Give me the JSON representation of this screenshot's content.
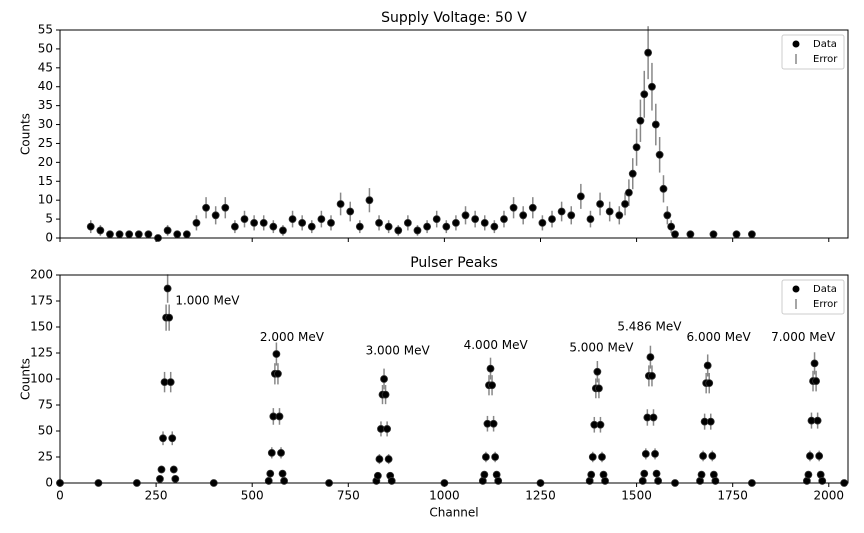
{
  "chart_data": [
    {
      "type": "scatter",
      "title": "Supply Voltage: 50 V",
      "ylabel": "Counts",
      "xlim": [
        0,
        2050
      ],
      "xticks": [
        0,
        250,
        500,
        750,
        1000,
        1250,
        1500,
        1750,
        2000
      ],
      "ylim": [
        0,
        55
      ],
      "yticks": [
        0,
        5,
        10,
        15,
        20,
        25,
        30,
        35,
        40,
        45,
        50,
        55
      ],
      "legend": "upper right",
      "series": [
        {
          "name": "Data",
          "error_name": "Error",
          "color": "#000000",
          "error_color": "#888888",
          "x": [
            80,
            105,
            130,
            155,
            180,
            205,
            230,
            255,
            280,
            305,
            330,
            355,
            380,
            405,
            430,
            455,
            480,
            505,
            530,
            555,
            580,
            605,
            630,
            655,
            680,
            705,
            730,
            755,
            780,
            805,
            830,
            855,
            880,
            905,
            930,
            955,
            980,
            1005,
            1030,
            1055,
            1080,
            1105,
            1130,
            1155,
            1180,
            1205,
            1230,
            1255,
            1280,
            1305,
            1330,
            1355,
            1380,
            1405,
            1430,
            1455,
            1470,
            1480,
            1490,
            1500,
            1510,
            1520,
            1530,
            1540,
            1550,
            1560,
            1570,
            1580,
            1590,
            1600,
            1640,
            1700,
            1760,
            1800
          ],
          "values": [
            3,
            2,
            1,
            1,
            1,
            1,
            1,
            0,
            2,
            1,
            1,
            4,
            8,
            6,
            8,
            3,
            5,
            4,
            4,
            3,
            2,
            5,
            4,
            3,
            5,
            4,
            9,
            7,
            3,
            10,
            4,
            3,
            2,
            4,
            2,
            3,
            5,
            3,
            4,
            6,
            5,
            4,
            3,
            5,
            8,
            6,
            8,
            4,
            5,
            7,
            6,
            11,
            5,
            9,
            7,
            6,
            9,
            12,
            17,
            24,
            31,
            38,
            49,
            40,
            30,
            22,
            13,
            6,
            3,
            1,
            1,
            1,
            1,
            1
          ],
          "errors": [
            1.7,
            1.4,
            1,
            1,
            1,
            1,
            1,
            0,
            1.4,
            1,
            1,
            2,
            2.8,
            2.4,
            2.8,
            1.7,
            2.2,
            2,
            2,
            1.7,
            1.4,
            2.2,
            2,
            1.7,
            2.2,
            2,
            3,
            2.6,
            1.7,
            3.2,
            2,
            1.7,
            1.4,
            2,
            1.4,
            1.7,
            2.2,
            1.7,
            2,
            2.4,
            2.2,
            2,
            1.7,
            2.2,
            2.8,
            2.4,
            2.8,
            2,
            2.2,
            2.6,
            2.4,
            3.3,
            2.2,
            3,
            2.6,
            2.4,
            3,
            3.5,
            4.1,
            4.9,
            5.6,
            6.2,
            7,
            6.3,
            5.5,
            4.7,
            3.6,
            2.4,
            1.7,
            1,
            1,
            1,
            1,
            1
          ]
        }
      ]
    },
    {
      "type": "scatter",
      "title": "Pulser Peaks",
      "xlabel": "Channel",
      "ylabel": "Counts",
      "xlim": [
        0,
        2050
      ],
      "xticks": [
        0,
        250,
        500,
        750,
        1000,
        1250,
        1500,
        1750,
        2000
      ],
      "ylim": [
        0,
        200
      ],
      "yticks": [
        0,
        25,
        50,
        75,
        100,
        125,
        150,
        175,
        200
      ],
      "legend": "upper right",
      "annotations": [
        {
          "text": "1.000 MeV",
          "x": 300,
          "y": 175
        },
        {
          "text": "2.000 MeV",
          "x": 520,
          "y": 140
        },
        {
          "text": "3.000 MeV",
          "x": 795,
          "y": 127
        },
        {
          "text": "4.000 MeV",
          "x": 1050,
          "y": 132
        },
        {
          "text": "5.000 MeV",
          "x": 1325,
          "y": 130
        },
        {
          "text": "5.486 MeV",
          "x": 1450,
          "y": 150
        },
        {
          "text": "6.000 MeV",
          "x": 1630,
          "y": 140
        },
        {
          "text": "7.000 MeV",
          "x": 1850,
          "y": 140
        }
      ],
      "series": [
        {
          "name": "Data",
          "error_name": "Error",
          "color": "#000000",
          "error_color": "#888888",
          "x": [
            260,
            264,
            268,
            272,
            276,
            280,
            284,
            288,
            292,
            296,
            300,
            543,
            547,
            551,
            555,
            559,
            563,
            567,
            571,
            575,
            579,
            583,
            823,
            827,
            831,
            835,
            839,
            843,
            847,
            851,
            855,
            859,
            863,
            1100,
            1104,
            1108,
            1112,
            1116,
            1120,
            1124,
            1128,
            1132,
            1136,
            1140,
            1378,
            1382,
            1386,
            1390,
            1394,
            1398,
            1402,
            1406,
            1410,
            1414,
            1418,
            1516,
            1520,
            1524,
            1528,
            1532,
            1536,
            1540,
            1544,
            1548,
            1552,
            1556,
            1665,
            1669,
            1673,
            1677,
            1681,
            1685,
            1689,
            1693,
            1697,
            1701,
            1705,
            1943,
            1947,
            1951,
            1955,
            1959,
            1963,
            1967,
            1971,
            1975,
            1979,
            1983,
            0,
            100,
            200,
            400,
            700,
            1000,
            1250,
            1600,
            1800,
            2040
          ],
          "values": [
            4,
            13,
            43,
            97,
            159,
            187,
            159,
            97,
            43,
            13,
            4,
            2,
            9,
            29,
            64,
            105,
            124,
            105,
            64,
            29,
            9,
            2,
            2,
            7,
            23,
            52,
            85,
            100,
            85,
            52,
            23,
            7,
            2,
            2,
            8,
            25,
            57,
            94,
            110,
            94,
            57,
            25,
            8,
            2,
            2,
            8,
            25,
            56,
            91,
            107,
            91,
            56,
            25,
            8,
            2,
            2,
            9,
            28,
            63,
            103,
            121,
            103,
            63,
            28,
            9,
            2,
            2,
            8,
            26,
            59,
            96,
            113,
            96,
            59,
            26,
            8,
            2,
            2,
            8,
            26,
            60,
            98,
            115,
            98,
            60,
            26,
            8,
            2,
            0,
            0,
            0,
            0,
            0,
            0,
            0,
            0,
            0,
            0
          ],
          "errors": [
            2,
            3.6,
            6.6,
            9.8,
            12.6,
            13.7,
            12.6,
            9.8,
            6.6,
            3.6,
            2,
            1.4,
            3,
            5.4,
            8,
            10.2,
            11.1,
            10.2,
            8,
            5.4,
            3,
            1.4,
            1.4,
            2.6,
            4.8,
            7.2,
            9.2,
            10,
            9.2,
            7.2,
            4.8,
            2.6,
            1.4,
            1.4,
            2.8,
            5,
            7.5,
            9.7,
            10.5,
            9.7,
            7.5,
            5,
            2.8,
            1.4,
            1.4,
            2.8,
            5,
            7.5,
            9.5,
            10.3,
            9.5,
            7.5,
            5,
            2.8,
            1.4,
            1.4,
            3,
            5.3,
            7.9,
            10.1,
            11,
            10.1,
            7.9,
            5.3,
            3,
            1.4,
            1.4,
            2.8,
            5.1,
            7.7,
            9.8,
            10.6,
            9.8,
            7.7,
            5.1,
            2.8,
            1.4,
            1.4,
            2.8,
            5.1,
            7.7,
            9.9,
            10.7,
            9.9,
            7.7,
            5.1,
            2.8,
            1.4,
            0,
            0,
            0,
            0,
            0,
            0,
            0,
            0,
            0,
            0
          ]
        }
      ]
    }
  ]
}
